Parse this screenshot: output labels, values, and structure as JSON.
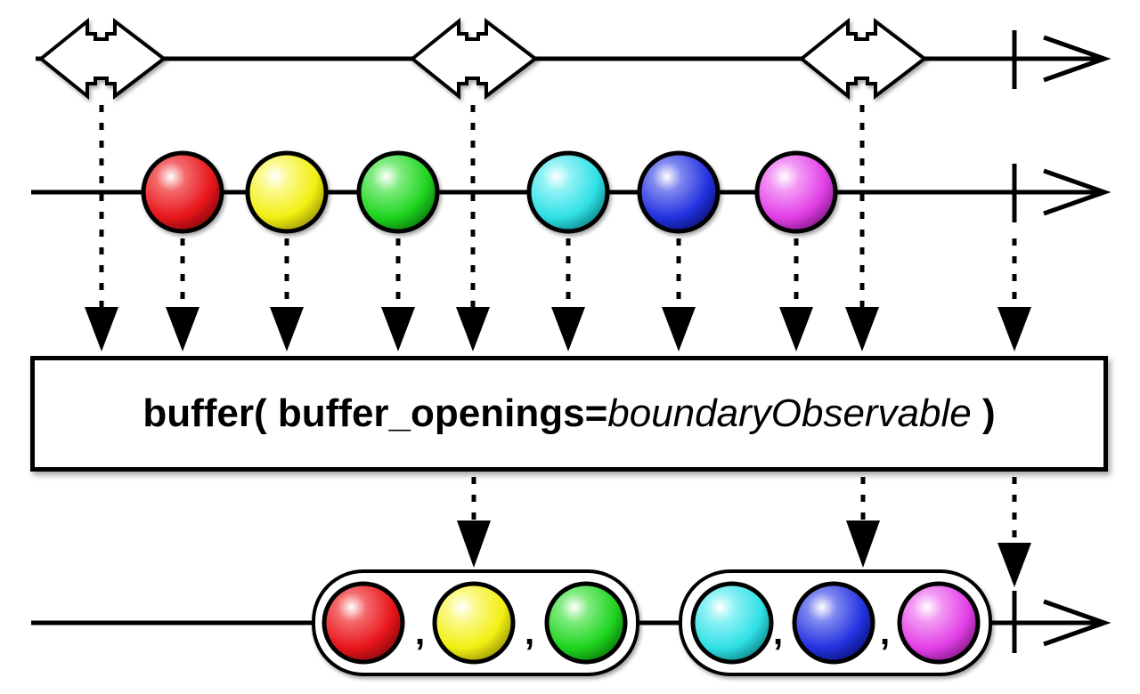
{
  "operator": {
    "name": "buffer(",
    "param": "buffer_openings=",
    "value": "boundaryObservable",
    "close": ")"
  },
  "colors": {
    "red": "#e8151b",
    "yellow": "#f2ef12",
    "green": "#1fd41f",
    "cyan": "#2fe0e6",
    "blue": "#2332e0",
    "magenta": "#e23fe6"
  },
  "boundary_stream": {
    "openings": 3,
    "completed": true
  },
  "source_stream": {
    "items": [
      "red",
      "yellow",
      "green",
      "cyan",
      "blue",
      "magenta"
    ],
    "completed": true
  },
  "output_stream": {
    "buffers": [
      [
        "red",
        "yellow",
        "green"
      ],
      [
        "cyan",
        "blue",
        "magenta"
      ]
    ],
    "separator": ",",
    "completed": true
  }
}
